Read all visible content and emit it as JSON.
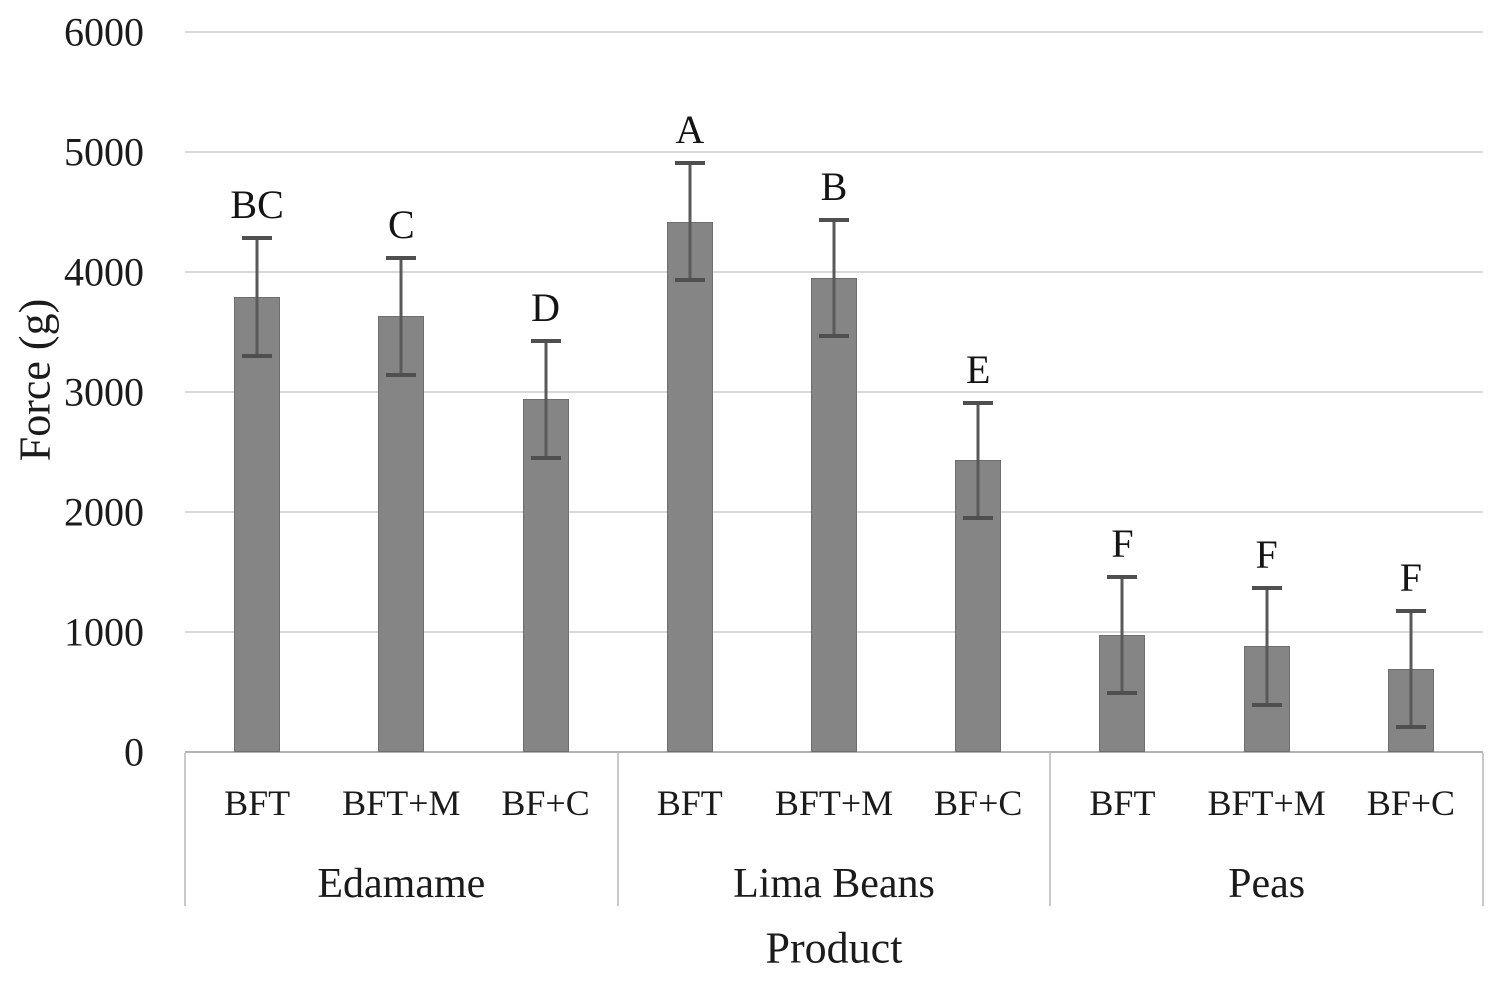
{
  "chart_data": {
    "type": "bar",
    "title": "",
    "ylabel": "Force (g)",
    "xlabel": "Product",
    "ylim": [
      0,
      6000
    ],
    "yticks": [
      0,
      1000,
      2000,
      3000,
      4000,
      5000,
      6000
    ],
    "grid": true,
    "legend": "none",
    "bar_color": "#858585",
    "error_bar_color": "#595959",
    "gridline_color": "#d9d9d9",
    "axis_line_color": "#b3b3b3",
    "text_color": "#1b1b1b",
    "groups": [
      {
        "label": "Edamame",
        "bars": [
          {
            "category": "BFT",
            "value": 3790,
            "error": 490,
            "letter": "BC"
          },
          {
            "category": "BFT+M",
            "value": 3630,
            "error": 487,
            "letter": "C"
          },
          {
            "category": "BF+C",
            "value": 2940,
            "error": 489,
            "letter": "D"
          }
        ]
      },
      {
        "label": "Lima Beans",
        "bars": [
          {
            "category": "BFT",
            "value": 4420,
            "error": 489,
            "letter": "A"
          },
          {
            "category": "BFT+M",
            "value": 3950,
            "error": 485,
            "letter": "B"
          },
          {
            "category": "BF+C",
            "value": 2430,
            "error": 480,
            "letter": "E"
          }
        ]
      },
      {
        "label": "Peas",
        "bars": [
          {
            "category": "BFT",
            "value": 975,
            "error": 483,
            "letter": "F"
          },
          {
            "category": "BFT+M",
            "value": 880,
            "error": 486,
            "letter": "F"
          },
          {
            "category": "BF+C",
            "value": 690,
            "error": 482,
            "letter": "F"
          }
        ]
      }
    ]
  }
}
